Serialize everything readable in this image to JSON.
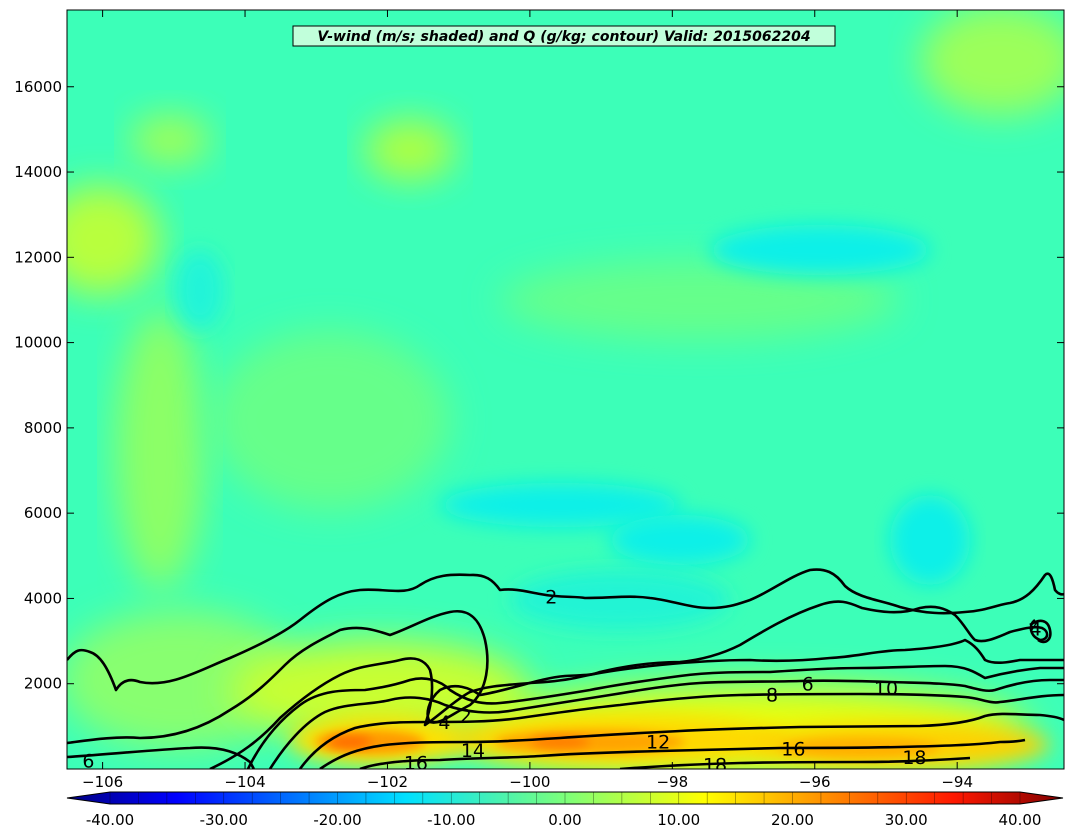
{
  "chart_data": {
    "type": "heatmap",
    "title": "V-wind (m/s; shaded) and Q (g/kg; contour) Valid: 2015062204",
    "x_ticks": [
      -106,
      -104,
      -102,
      -100,
      -98,
      -96,
      -94
    ],
    "x_tick_labels": [
      "−106",
      "−104",
      "−102",
      "−100",
      "−98",
      "−96",
      "−94"
    ],
    "xlim": [
      -106.5,
      -92.5
    ],
    "y_ticks": [
      2000,
      4000,
      6000,
      8000,
      10000,
      12000,
      14000,
      16000
    ],
    "y_tick_labels": [
      "2000",
      "4000",
      "6000",
      "8000",
      "10000",
      "12000",
      "14000",
      "16000"
    ],
    "ylim": [
      0,
      17800
    ],
    "colorbar": {
      "orientation": "horizontal",
      "extend": "both",
      "range": [
        -40,
        40
      ],
      "ticks": [
        -40,
        -30,
        -20,
        -10,
        0,
        10,
        20,
        30,
        40
      ],
      "tick_labels": [
        "-40.00",
        "-30.00",
        "-20.00",
        "-10.00",
        "0.00",
        "10.00",
        "20.00",
        "30.00",
        "40.00"
      ],
      "colormap": "jet"
    },
    "shaded_field": {
      "name": "V-wind (m/s)",
      "regions": [
        {
          "label": "upper background",
          "value": -2
        },
        {
          "label": "mid-level minimum near -100 to -97",
          "value": -9
        },
        {
          "label": "upper trough near 12000 m, -98 to -95",
          "value": -8
        },
        {
          "label": "upper-left maximum near -106",
          "value": 6
        },
        {
          "label": "low-level jet core -102 to -93",
          "value": 19
        }
      ]
    },
    "contour_field": {
      "name": "Q (g/kg)",
      "levels_labeled": [
        2,
        4,
        6,
        8,
        10,
        12,
        14,
        16,
        18
      ],
      "labels_shown": [
        {
          "text": "2",
          "x": -99.7,
          "y": 4050
        },
        {
          "text": "2",
          "x": -100.9,
          "y": 1250
        },
        {
          "text": "4",
          "x": -101.2,
          "y": 1100
        },
        {
          "text": "4",
          "x": -92.9,
          "y": 3300
        },
        {
          "text": "6",
          "x": -96.1,
          "y": 2000
        },
        {
          "text": "6",
          "x": -106.2,
          "y": 200
        },
        {
          "text": "8",
          "x": -96.6,
          "y": 1750
        },
        {
          "text": "10",
          "x": -95.0,
          "y": 1900
        },
        {
          "text": "12",
          "x": -98.2,
          "y": 650
        },
        {
          "text": "14",
          "x": -100.8,
          "y": 450
        },
        {
          "text": "16",
          "x": -101.6,
          "y": 150
        },
        {
          "text": "16",
          "x": -96.3,
          "y": 480
        },
        {
          "text": "18",
          "x": -97.4,
          "y": 100
        },
        {
          "text": "18",
          "x": -94.6,
          "y": 280
        }
      ]
    }
  }
}
